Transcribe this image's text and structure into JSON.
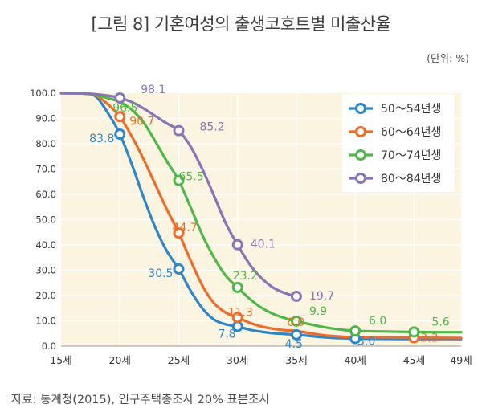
{
  "figure": {
    "title": "[그림 8] 기혼여성의 출생코호트별 미출산율",
    "unit": "(단위: %)",
    "source": "자료: 통계청(2015), 인구주택총조사 20% 표본조사"
  },
  "colors": {
    "plot_bg": "#fbf4e0",
    "grid": "#ffffff",
    "legend_bg": "#ffffff"
  },
  "chart_data": {
    "type": "line",
    "title": "[그림 8] 기혼여성의 출생코호트별 미출산율",
    "xlabel": "",
    "ylabel": "(단위: %)",
    "xlim": [
      15,
      49
    ],
    "ylim": [
      0,
      100
    ],
    "x_ticks": [
      15,
      20,
      25,
      30,
      35,
      40,
      45,
      49
    ],
    "x_tick_labels": [
      "15세",
      "20세",
      "25세",
      "30세",
      "35세",
      "40세",
      "45세",
      "49세"
    ],
    "y_ticks": [
      0,
      10,
      20,
      30,
      40,
      50,
      60,
      70,
      80,
      90,
      100
    ],
    "y_tick_labels": [
      "0.0",
      "10.0",
      "20.0",
      "30.0",
      "40.0",
      "50.0",
      "60.0",
      "70.0",
      "80.0",
      "90.0",
      "100.0"
    ],
    "legend_position": "top-right",
    "series": [
      {
        "name": "50～54년생",
        "color": "#2e86c8",
        "curve": [
          [
            15,
            100
          ],
          [
            17,
            99.8
          ],
          [
            18,
            98.5
          ],
          [
            19,
            92
          ],
          [
            20,
            83.8
          ],
          [
            21,
            72
          ],
          [
            22,
            59
          ],
          [
            23,
            47
          ],
          [
            24,
            37.5
          ],
          [
            25,
            30.5
          ],
          [
            26,
            22
          ],
          [
            27,
            15
          ],
          [
            28,
            10.5
          ],
          [
            29,
            8.6
          ],
          [
            30,
            7.8
          ],
          [
            31,
            6.5
          ],
          [
            32,
            5.7
          ],
          [
            33,
            5.1
          ],
          [
            34,
            4.8
          ],
          [
            35,
            4.5
          ],
          [
            36,
            4.1
          ],
          [
            37,
            3.6
          ],
          [
            38,
            3.3
          ],
          [
            39,
            3.1
          ],
          [
            40,
            3.0
          ],
          [
            42,
            2.9
          ],
          [
            45,
            2.8
          ],
          [
            49,
            2.8
          ]
        ],
        "markers": [
          {
            "x": 20,
            "y": 83.8
          },
          {
            "x": 25,
            "y": 30.5
          },
          {
            "x": 30,
            "y": 7.8
          },
          {
            "x": 35,
            "y": 4.5
          },
          {
            "x": 40,
            "y": 3.0
          }
        ],
        "labels": [
          {
            "x": 20,
            "y": 83.8,
            "text": "83.8"
          },
          {
            "x": 25,
            "y": 30.5,
            "text": "30.5"
          },
          {
            "x": 30,
            "y": 7.8,
            "text": "7.8"
          },
          {
            "x": 35,
            "y": 4.5,
            "text": "4.5"
          },
          {
            "x": 40,
            "y": 3.0,
            "text": "3.0"
          }
        ]
      },
      {
        "name": "60～64년생",
        "color": "#ee6b2a",
        "curve": [
          [
            15,
            100
          ],
          [
            17,
            99.8
          ],
          [
            18,
            99
          ],
          [
            19,
            95.5
          ],
          [
            20,
            90.7
          ],
          [
            21,
            83
          ],
          [
            22,
            74
          ],
          [
            23,
            64
          ],
          [
            24,
            54
          ],
          [
            25,
            44.7
          ],
          [
            26,
            34
          ],
          [
            27,
            24
          ],
          [
            28,
            17
          ],
          [
            29,
            13.2
          ],
          [
            30,
            11.3
          ],
          [
            31,
            9.3
          ],
          [
            32,
            7.8
          ],
          [
            33,
            6.9
          ],
          [
            34,
            6.3
          ],
          [
            35,
            6.0
          ],
          [
            36,
            5.2
          ],
          [
            37,
            4.5
          ],
          [
            38,
            4.0
          ],
          [
            39,
            3.7
          ],
          [
            40,
            3.5
          ],
          [
            42,
            3.4
          ],
          [
            45,
            3.3
          ],
          [
            49,
            3.2
          ]
        ],
        "markers": [
          {
            "x": 20,
            "y": 90.7
          },
          {
            "x": 25,
            "y": 44.7
          },
          {
            "x": 30,
            "y": 11.3
          },
          {
            "x": 45,
            "y": 3.3
          }
        ],
        "labels": [
          {
            "x": 20,
            "y": 90.7,
            "text": "90.7"
          },
          {
            "x": 25,
            "y": 44.7,
            "text": "44.7"
          },
          {
            "x": 30,
            "y": 11.3,
            "text": "11.3"
          },
          {
            "x": 35,
            "y": 6.0,
            "text": "6.0"
          },
          {
            "x": 45,
            "y": 3.3,
            "text": "3.3"
          }
        ]
      },
      {
        "name": "70～74년생",
        "color": "#4db848",
        "curve": [
          [
            15,
            100
          ],
          [
            17,
            99.9
          ],
          [
            18,
            99.2
          ],
          [
            19,
            98
          ],
          [
            20,
            96.5
          ],
          [
            21,
            93.5
          ],
          [
            22,
            88.5
          ],
          [
            23,
            81
          ],
          [
            24,
            73
          ],
          [
            25,
            65.5
          ],
          [
            26,
            55
          ],
          [
            27,
            44
          ],
          [
            28,
            35
          ],
          [
            29,
            27.8
          ],
          [
            30,
            23.2
          ],
          [
            31,
            18.8
          ],
          [
            32,
            15.3
          ],
          [
            33,
            12.8
          ],
          [
            34,
            11.1
          ],
          [
            35,
            9.9
          ],
          [
            36,
            8.8
          ],
          [
            37,
            7.8
          ],
          [
            38,
            7.0
          ],
          [
            39,
            6.4
          ],
          [
            40,
            6.0
          ],
          [
            42,
            5.8
          ],
          [
            45,
            5.6
          ],
          [
            47,
            5.5
          ],
          [
            49,
            5.5
          ]
        ],
        "markers": [
          {
            "x": 25,
            "y": 65.5
          },
          {
            "x": 30,
            "y": 23.2
          },
          {
            "x": 35,
            "y": 9.9
          },
          {
            "x": 40,
            "y": 6.0
          },
          {
            "x": 45,
            "y": 5.6
          }
        ],
        "labels": [
          {
            "x": 20,
            "y": 96.5,
            "text": "96.5"
          },
          {
            "x": 25,
            "y": 65.5,
            "text": "65.5"
          },
          {
            "x": 30,
            "y": 23.2,
            "text": "23.2"
          },
          {
            "x": 35,
            "y": 9.9,
            "text": "9.9"
          },
          {
            "x": 40,
            "y": 6.0,
            "text": "6.0"
          },
          {
            "x": 45,
            "y": 5.6,
            "text": "5.6"
          }
        ]
      },
      {
        "name": "80～84년생",
        "color": "#8a74b8",
        "curve": [
          [
            15,
            100
          ],
          [
            17,
            99.9
          ],
          [
            18,
            99.6
          ],
          [
            19,
            99
          ],
          [
            20,
            98.1
          ],
          [
            21,
            96.5
          ],
          [
            22,
            94
          ],
          [
            23,
            91
          ],
          [
            24,
            88
          ],
          [
            25,
            85.2
          ],
          [
            26,
            79
          ],
          [
            27,
            70
          ],
          [
            28,
            59.5
          ],
          [
            29,
            48.5
          ],
          [
            30,
            40.1
          ],
          [
            31,
            32.5
          ],
          [
            32,
            27
          ],
          [
            33,
            23.2
          ],
          [
            34,
            21
          ],
          [
            35,
            19.7
          ]
        ],
        "markers": [
          {
            "x": 20,
            "y": 98.1
          },
          {
            "x": 25,
            "y": 85.2
          },
          {
            "x": 30,
            "y": 40.1
          },
          {
            "x": 35,
            "y": 19.7
          }
        ],
        "labels": [
          {
            "x": 20,
            "y": 98.1,
            "text": "98.1"
          },
          {
            "x": 25,
            "y": 85.2,
            "text": "85.2"
          },
          {
            "x": 30,
            "y": 40.1,
            "text": "40.1"
          },
          {
            "x": 35,
            "y": 19.7,
            "text": "19.7"
          }
        ]
      }
    ]
  }
}
